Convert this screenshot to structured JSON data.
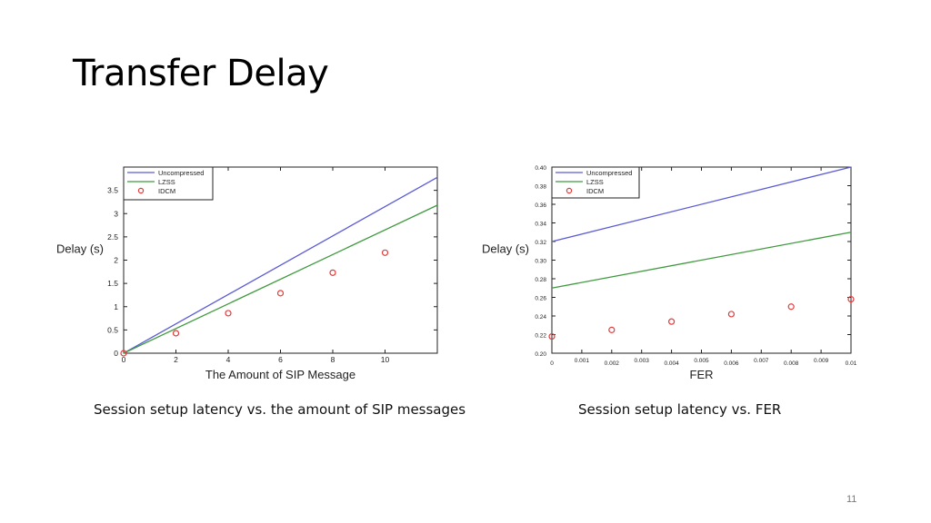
{
  "slide": {
    "title": "Transfer Delay",
    "caption_left": "Session setup latency vs. the amount of SIP messages",
    "caption_right": "Session setup latency vs. FER",
    "page_number": "11"
  },
  "colors": {
    "uncompressed": "#5b5bd6",
    "lzss": "#3f9a3f",
    "idcm": "#e63a3a"
  },
  "chart_data": [
    {
      "type": "line",
      "title": "",
      "xlabel": "The Amount of SIP Message",
      "ylabel": "Delay (s)",
      "xlim": [
        0,
        12
      ],
      "ylim": [
        0,
        4
      ],
      "xticks": [
        0,
        2,
        4,
        6,
        8,
        10
      ],
      "yticks": [
        0,
        0.5,
        1,
        1.5,
        2,
        2.5,
        3,
        3.5
      ],
      "ytick_labels": [
        "0",
        "0.5",
        "1",
        "1.5",
        "2",
        "2.5",
        "3",
        "3.5"
      ],
      "legend_position": "top-left",
      "series": [
        {
          "name": "Uncompressed",
          "style": "line",
          "x": [
            0,
            12
          ],
          "y": [
            0,
            3.78
          ]
        },
        {
          "name": "LZSS",
          "style": "line",
          "x": [
            0,
            12
          ],
          "y": [
            0,
            3.18
          ]
        },
        {
          "name": "IDCM",
          "style": "circle",
          "x": [
            0,
            2,
            4,
            6,
            8,
            10
          ],
          "y": [
            0,
            0.43,
            0.86,
            1.29,
            1.73,
            2.16
          ]
        }
      ]
    },
    {
      "type": "line",
      "title": "",
      "xlabel": "FER",
      "ylabel": "Delay (s)",
      "xlim": [
        0,
        0.01
      ],
      "ylim": [
        0.2,
        0.4
      ],
      "xticks": [
        0,
        0.001,
        0.002,
        0.003,
        0.004,
        0.005,
        0.006,
        0.007,
        0.008,
        0.009,
        0.01
      ],
      "xtick_labels": [
        "0",
        "0.001",
        "0.002",
        "0.003",
        "0.004",
        "0.005",
        "0.006",
        "0.007",
        "0.008",
        "0.009",
        "0.01"
      ],
      "yticks": [
        0.2,
        0.22,
        0.24,
        0.26,
        0.28,
        0.3,
        0.32,
        0.34,
        0.36,
        0.38,
        0.4
      ],
      "ytick_labels": [
        "0.20",
        "0.22",
        "0.24",
        "0.26",
        "0.28",
        "0.30",
        "0.32",
        "0.34",
        "0.36",
        "0.38",
        "0.40"
      ],
      "legend_position": "top-left",
      "series": [
        {
          "name": "Uncompressed",
          "style": "line",
          "x": [
            0,
            0.01
          ],
          "y": [
            0.32,
            0.4
          ]
        },
        {
          "name": "LZSS",
          "style": "line",
          "x": [
            0,
            0.01
          ],
          "y": [
            0.27,
            0.33
          ]
        },
        {
          "name": "IDCM",
          "style": "circle",
          "x": [
            0,
            0.002,
            0.004,
            0.006,
            0.008,
            0.01
          ],
          "y": [
            0.218,
            0.225,
            0.234,
            0.242,
            0.25,
            0.258
          ]
        }
      ]
    }
  ]
}
